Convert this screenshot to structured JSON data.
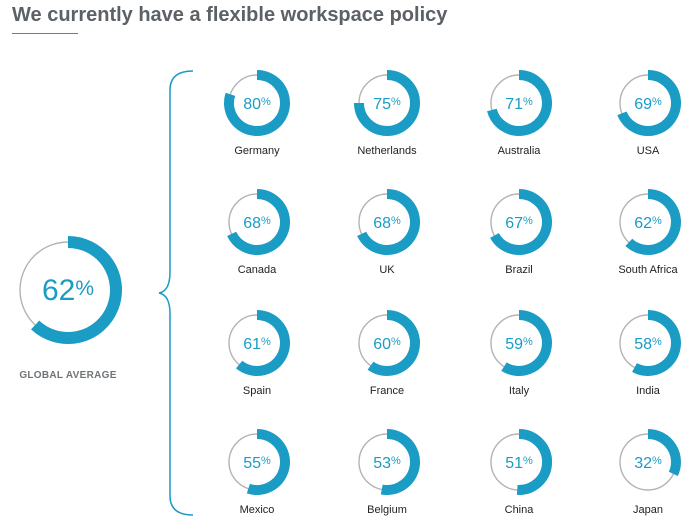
{
  "title": "We currently have a flexible workspace policy",
  "chart_data": {
    "type": "pie",
    "variant": "donut-grid",
    "unit": "%",
    "colors": {
      "filled": "#1a9cc4",
      "remainder": "#b3b3b3",
      "text": "#1a9cc4"
    },
    "global": {
      "label": "GLOBAL AVERAGE",
      "value": 62
    },
    "countries": [
      {
        "name": "Germany",
        "value": 80
      },
      {
        "name": "Netherlands",
        "value": 75
      },
      {
        "name": "Australia",
        "value": 71
      },
      {
        "name": "USA",
        "value": 69
      },
      {
        "name": "Canada",
        "value": 68
      },
      {
        "name": "UK",
        "value": 68
      },
      {
        "name": "Brazil",
        "value": 67
      },
      {
        "name": "South Africa",
        "value": 62
      },
      {
        "name": "Spain",
        "value": 61
      },
      {
        "name": "France",
        "value": 60
      },
      {
        "name": "Italy",
        "value": 59
      },
      {
        "name": "India",
        "value": 58
      },
      {
        "name": "Mexico",
        "value": 55
      },
      {
        "name": "Belgium",
        "value": 53
      },
      {
        "name": "China",
        "value": 51
      },
      {
        "name": "Japan",
        "value": 32
      }
    ]
  }
}
